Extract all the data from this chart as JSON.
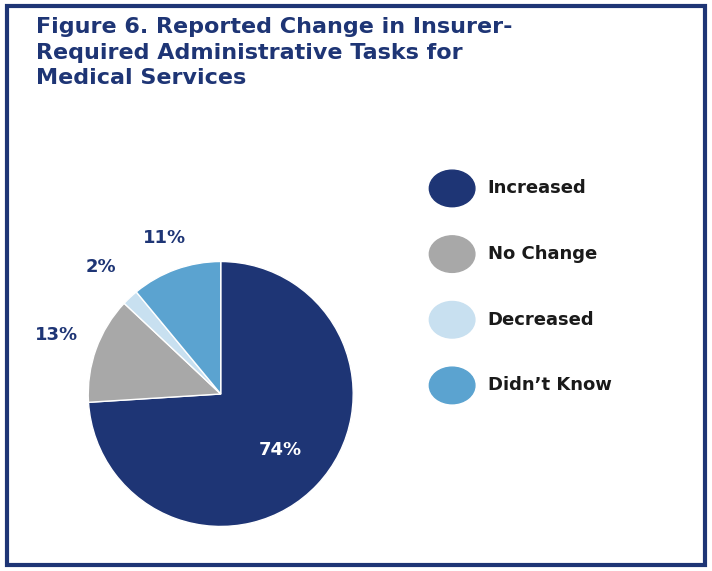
{
  "title": "Figure 6. Reported Change in Insurer-\nRequired Administrative Tasks for\nMedical Services",
  "slices": [
    74,
    13,
    2,
    11
  ],
  "labels": [
    "Increased",
    "No Change",
    "Decreased",
    "Didn’t Know"
  ],
  "pct_labels": [
    "74%",
    "13%",
    "2%",
    "11%"
  ],
  "colors": [
    "#1e3575",
    "#a8a8a8",
    "#c8e0f0",
    "#5ba3d0"
  ],
  "background_color": "#ffffff",
  "border_color": "#1e3575",
  "title_color": "#1e3575",
  "pct_label_color_inside": "#ffffff",
  "pct_label_color_outside": "#1e3575",
  "legend_label_color": "#1a1a1a",
  "startangle": 90,
  "title_fontsize": 16,
  "legend_fontsize": 13,
  "pct_fontsize": 13
}
